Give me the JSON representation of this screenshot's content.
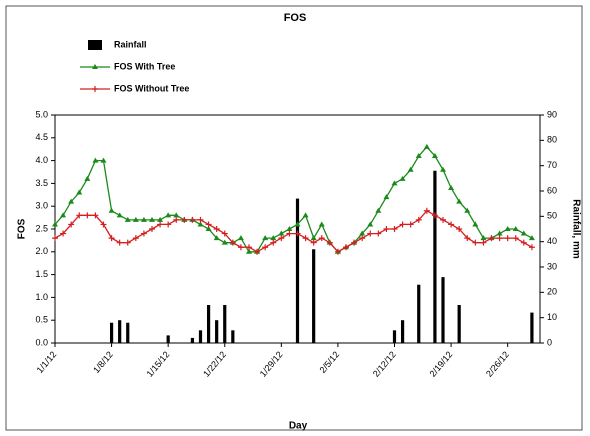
{
  "chart_data": {
    "type": "combo",
    "title": "FOS",
    "x_label": "Day",
    "y_label": "FOS",
    "y2_label": "Rainfall, mm",
    "x": [
      "1/1/12",
      "1/2/12",
      "1/3/12",
      "1/4/12",
      "1/5/12",
      "1/6/12",
      "1/7/12",
      "1/8/12",
      "1/9/12",
      "1/10/12",
      "1/11/12",
      "1/12/12",
      "1/13/12",
      "1/14/12",
      "1/15/12",
      "1/16/12",
      "1/17/12",
      "1/18/12",
      "1/19/12",
      "1/20/12",
      "1/21/12",
      "1/22/12",
      "1/23/12",
      "1/24/12",
      "1/25/12",
      "1/26/12",
      "1/27/12",
      "1/28/12",
      "1/29/12",
      "1/30/12",
      "1/31/12",
      "2/1/12",
      "2/2/12",
      "2/3/12",
      "2/4/12",
      "2/5/12",
      "2/6/12",
      "2/7/12",
      "2/8/12",
      "2/9/12",
      "2/10/12",
      "2/11/12",
      "2/12/12",
      "2/13/12",
      "2/14/12",
      "2/15/12",
      "2/16/12",
      "2/17/12",
      "2/18/12",
      "2/19/12",
      "2/20/12",
      "2/21/12",
      "2/22/12",
      "2/23/12",
      "2/24/12",
      "2/25/12",
      "2/26/12",
      "2/27/12",
      "2/28/12",
      "2/29/12"
    ],
    "series": [
      {
        "name": "Rainfall",
        "type": "bar",
        "axis": "y2",
        "color": "#000000",
        "values": [
          0,
          0,
          0,
          0,
          0,
          0,
          0,
          8,
          9,
          8,
          0,
          0,
          0,
          0,
          3,
          0,
          0,
          2,
          5,
          15,
          9,
          15,
          5,
          0,
          0,
          0,
          0,
          0,
          0,
          0,
          57,
          0,
          37,
          0,
          0,
          0,
          0,
          0,
          0,
          0,
          0,
          0,
          5,
          9,
          0,
          23,
          0,
          68,
          26,
          0,
          15,
          0,
          0,
          0,
          0,
          0,
          0,
          0,
          0,
          12
        ]
      },
      {
        "name": "FOS With Tree",
        "type": "line",
        "marker": "triangle",
        "color": "#1a8a1a",
        "values": [
          2.6,
          2.8,
          3.1,
          3.3,
          3.6,
          4.0,
          4.0,
          2.9,
          2.8,
          2.7,
          2.7,
          2.7,
          2.7,
          2.7,
          2.8,
          2.8,
          2.7,
          2.7,
          2.6,
          2.5,
          2.3,
          2.2,
          2.2,
          2.3,
          2.0,
          2.0,
          2.3,
          2.3,
          2.4,
          2.5,
          2.6,
          2.8,
          2.3,
          2.6,
          2.2,
          2.0,
          2.1,
          2.2,
          2.4,
          2.6,
          2.9,
          3.2,
          3.5,
          3.6,
          3.8,
          4.1,
          4.3,
          4.1,
          3.8,
          3.4,
          3.1,
          2.9,
          2.6,
          2.3,
          2.3,
          2.4,
          2.5,
          2.5,
          2.4,
          2.3
        ]
      },
      {
        "name": "FOS Without Tree",
        "type": "line",
        "marker": "plus",
        "color": "#d42020",
        "values": [
          2.3,
          2.4,
          2.6,
          2.8,
          2.8,
          2.8,
          2.6,
          2.3,
          2.2,
          2.2,
          2.3,
          2.4,
          2.5,
          2.6,
          2.6,
          2.7,
          2.7,
          2.7,
          2.7,
          2.6,
          2.5,
          2.4,
          2.2,
          2.1,
          2.1,
          2.0,
          2.1,
          2.2,
          2.3,
          2.4,
          2.4,
          2.3,
          2.2,
          2.3,
          2.2,
          2.0,
          2.1,
          2.2,
          2.3,
          2.4,
          2.4,
          2.5,
          2.5,
          2.6,
          2.6,
          2.7,
          2.9,
          2.8,
          2.7,
          2.6,
          2.5,
          2.3,
          2.2,
          2.2,
          2.3,
          2.3,
          2.3,
          2.3,
          2.2,
          2.1
        ]
      }
    ],
    "xlim": [
      "1/1/12",
      "3/1/12"
    ],
    "xticks": [
      "1/1/12",
      "1/8/12",
      "1/15/12",
      "1/22/12",
      "1/29/12",
      "2/5/12",
      "2/12/12",
      "2/19/12",
      "2/26/12"
    ],
    "ylim": [
      0,
      5
    ],
    "yticks": [
      {
        "value": 0,
        "label": "0.0"
      },
      0.5,
      {
        "value": 1,
        "label": "1.0"
      },
      1.5,
      {
        "value": 2,
        "label": "2.0"
      },
      2.5,
      {
        "value": 3,
        "label": "3.0"
      },
      3.5,
      {
        "value": 4,
        "label": "4.0"
      },
      4.5,
      {
        "value": 5,
        "label": "5.0"
      }
    ],
    "y2lim": [
      0,
      90
    ],
    "y2ticks": [
      0,
      10,
      20,
      30,
      40,
      50,
      60,
      70,
      80,
      90
    ],
    "legend": "upper left",
    "grid": false
  }
}
